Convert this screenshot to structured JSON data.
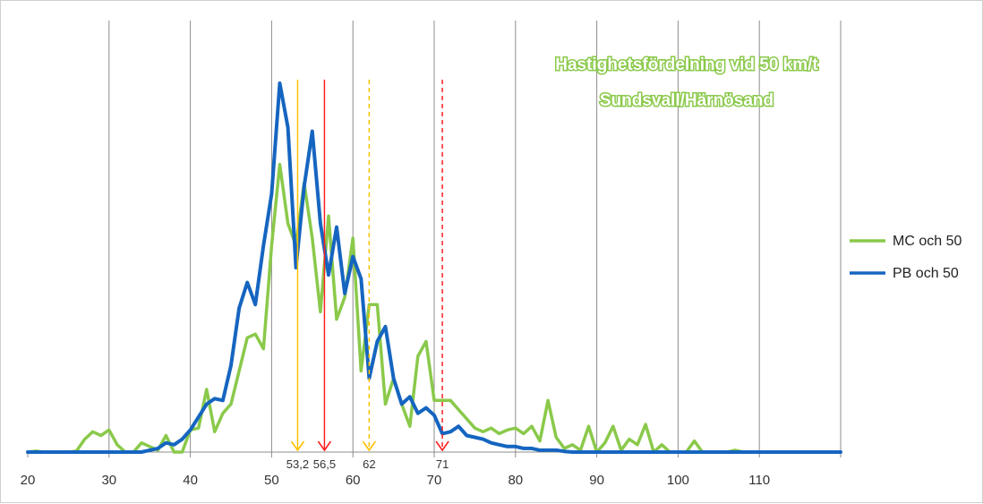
{
  "chart_data": {
    "type": "line",
    "title": "Hastighetsfördelning vid 50 km/t",
    "subtitle": "Sundsvall/Härnösand",
    "xlabel": "",
    "ylabel": "",
    "xlim": [
      20,
      120
    ],
    "x_ticks": [
      20,
      30,
      40,
      50,
      60,
      70,
      80,
      90,
      100,
      110
    ],
    "grid": "vertical",
    "legend_position": "right",
    "series": [
      {
        "name": "MC och 50",
        "color": "#8ac94a",
        "points": [
          [
            20,
            0
          ],
          [
            21,
            0.3
          ],
          [
            22,
            0
          ],
          [
            23,
            0
          ],
          [
            24,
            0
          ],
          [
            25,
            0
          ],
          [
            26,
            0.3
          ],
          [
            27,
            3.5
          ],
          [
            28,
            5.5
          ],
          [
            29,
            4.5
          ],
          [
            30,
            6.0
          ],
          [
            31,
            2.0
          ],
          [
            32,
            0
          ],
          [
            33,
            0
          ],
          [
            34,
            2.5
          ],
          [
            35,
            1.5
          ],
          [
            36,
            0.5
          ],
          [
            37,
            4.5
          ],
          [
            38,
            0
          ],
          [
            39,
            0
          ],
          [
            40,
            6.0
          ],
          [
            41,
            6.5
          ],
          [
            42,
            17.0
          ],
          [
            43,
            5.5
          ],
          [
            44,
            10.5
          ],
          [
            45,
            13.0
          ],
          [
            46,
            22.0
          ],
          [
            47,
            31.0
          ],
          [
            48,
            32.0
          ],
          [
            49,
            28.0
          ],
          [
            50,
            56.0
          ],
          [
            51,
            78.0
          ],
          [
            52,
            62.0
          ],
          [
            53,
            56.0
          ],
          [
            54,
            73.0
          ],
          [
            55,
            58.0
          ],
          [
            56,
            38.0
          ],
          [
            57,
            64.0
          ],
          [
            58,
            36.0
          ],
          [
            59,
            42.0
          ],
          [
            60,
            58.0
          ],
          [
            61,
            22.0
          ],
          [
            62,
            40.0
          ],
          [
            63,
            40.0
          ],
          [
            64,
            13.0
          ],
          [
            65,
            20.0
          ],
          [
            66,
            13.0
          ],
          [
            67,
            7.0
          ],
          [
            68,
            26.0
          ],
          [
            69,
            30.0
          ],
          [
            70,
            14.0
          ],
          [
            71,
            14.0
          ],
          [
            72,
            14.0
          ],
          [
            73,
            11.5
          ],
          [
            74,
            9.0
          ],
          [
            75,
            6.5
          ],
          [
            76,
            5.5
          ],
          [
            77,
            6.5
          ],
          [
            78,
            5.0
          ],
          [
            79,
            6.0
          ],
          [
            80,
            6.5
          ],
          [
            81,
            5.0
          ],
          [
            82,
            7.0
          ],
          [
            83,
            3.0
          ],
          [
            84,
            14.0
          ],
          [
            85,
            4.0
          ],
          [
            86,
            1.0
          ],
          [
            87,
            2.0
          ],
          [
            88,
            0.5
          ],
          [
            89,
            7.0
          ],
          [
            90,
            0
          ],
          [
            91,
            2.5
          ],
          [
            92,
            7.0
          ],
          [
            93,
            0.5
          ],
          [
            94,
            3.5
          ],
          [
            95,
            2.0
          ],
          [
            96,
            7.5
          ],
          [
            97,
            0
          ],
          [
            98,
            2.0
          ],
          [
            99,
            0
          ],
          [
            100,
            0
          ],
          [
            101,
            0
          ],
          [
            102,
            3.0
          ],
          [
            103,
            0
          ],
          [
            104,
            0
          ],
          [
            105,
            0
          ],
          [
            106,
            0
          ],
          [
            107,
            0.5
          ],
          [
            108,
            0
          ],
          [
            109,
            0
          ],
          [
            110,
            0
          ],
          [
            111,
            0
          ],
          [
            112,
            0
          ],
          [
            113,
            0
          ],
          [
            114,
            0
          ],
          [
            115,
            0
          ],
          [
            116,
            0
          ],
          [
            117,
            0
          ],
          [
            118,
            0
          ],
          [
            119,
            0
          ],
          [
            120,
            0
          ]
        ]
      },
      {
        "name": "PB och 50",
        "color": "#1565c0",
        "points": [
          [
            20,
            0
          ],
          [
            21,
            0
          ],
          [
            22,
            0
          ],
          [
            23,
            0
          ],
          [
            24,
            0
          ],
          [
            25,
            0
          ],
          [
            26,
            0
          ],
          [
            27,
            0
          ],
          [
            28,
            0
          ],
          [
            29,
            0
          ],
          [
            30,
            0
          ],
          [
            31,
            0
          ],
          [
            32,
            0
          ],
          [
            33,
            0
          ],
          [
            34,
            0
          ],
          [
            35,
            0.5
          ],
          [
            36,
            1.0
          ],
          [
            37,
            2.5
          ],
          [
            38,
            2.0
          ],
          [
            39,
            3.5
          ],
          [
            40,
            6.0
          ],
          [
            41,
            9.5
          ],
          [
            42,
            13.0
          ],
          [
            43,
            14.5
          ],
          [
            44,
            14.0
          ],
          [
            45,
            23.5
          ],
          [
            46,
            39.0
          ],
          [
            47,
            46.0
          ],
          [
            48,
            40.0
          ],
          [
            49,
            56.0
          ],
          [
            50,
            70.0
          ],
          [
            51,
            100.0
          ],
          [
            52,
            88.0
          ],
          [
            53,
            50.0
          ],
          [
            54,
            72.0
          ],
          [
            55,
            87.0
          ],
          [
            56,
            62.0
          ],
          [
            57,
            48.0
          ],
          [
            58,
            61.0
          ],
          [
            59,
            43.0
          ],
          [
            60,
            53.0
          ],
          [
            61,
            47.0
          ],
          [
            62,
            20.0
          ],
          [
            63,
            30.0
          ],
          [
            64,
            34.0
          ],
          [
            65,
            20.0
          ],
          [
            66,
            13.0
          ],
          [
            67,
            15.0
          ],
          [
            68,
            10.5
          ],
          [
            69,
            12.0
          ],
          [
            70,
            10.0
          ],
          [
            71,
            5.0
          ],
          [
            72,
            5.5
          ],
          [
            73,
            7.0
          ],
          [
            74,
            4.5
          ],
          [
            75,
            4.0
          ],
          [
            76,
            3.5
          ],
          [
            77,
            2.5
          ],
          [
            78,
            2.0
          ],
          [
            79,
            1.5
          ],
          [
            80,
            1.5
          ],
          [
            81,
            1.0
          ],
          [
            82,
            1.0
          ],
          [
            83,
            0.5
          ],
          [
            84,
            0.5
          ],
          [
            85,
            0.5
          ],
          [
            86,
            0.2
          ],
          [
            87,
            0
          ],
          [
            88,
            0
          ],
          [
            89,
            0
          ],
          [
            90,
            0
          ],
          [
            91,
            0
          ],
          [
            92,
            0
          ],
          [
            93,
            0
          ],
          [
            94,
            0
          ],
          [
            95,
            0
          ],
          [
            96,
            0
          ],
          [
            97,
            0
          ],
          [
            98,
            0
          ],
          [
            99,
            0
          ],
          [
            100,
            0
          ],
          [
            101,
            0
          ],
          [
            102,
            0
          ],
          [
            103,
            0
          ],
          [
            104,
            0
          ],
          [
            105,
            0
          ],
          [
            106,
            0
          ],
          [
            107,
            0
          ],
          [
            108,
            0
          ],
          [
            109,
            0
          ],
          [
            110,
            0
          ],
          [
            111,
            0
          ],
          [
            112,
            0
          ],
          [
            113,
            0
          ],
          [
            114,
            0
          ],
          [
            115,
            0
          ],
          [
            116,
            0
          ],
          [
            117,
            0
          ],
          [
            118,
            0
          ],
          [
            119,
            0
          ],
          [
            120,
            0
          ]
        ]
      }
    ],
    "markers": [
      {
        "x": 53.2,
        "label": "53,2",
        "color": "#ffc000",
        "style": "solid"
      },
      {
        "x": 56.5,
        "label": "56,5",
        "color": "#ff2020",
        "style": "solid"
      },
      {
        "x": 62,
        "label": "62",
        "color": "#ffc000",
        "style": "dashed"
      },
      {
        "x": 71,
        "label": "71",
        "color": "#ff2020",
        "style": "dashed"
      }
    ]
  }
}
